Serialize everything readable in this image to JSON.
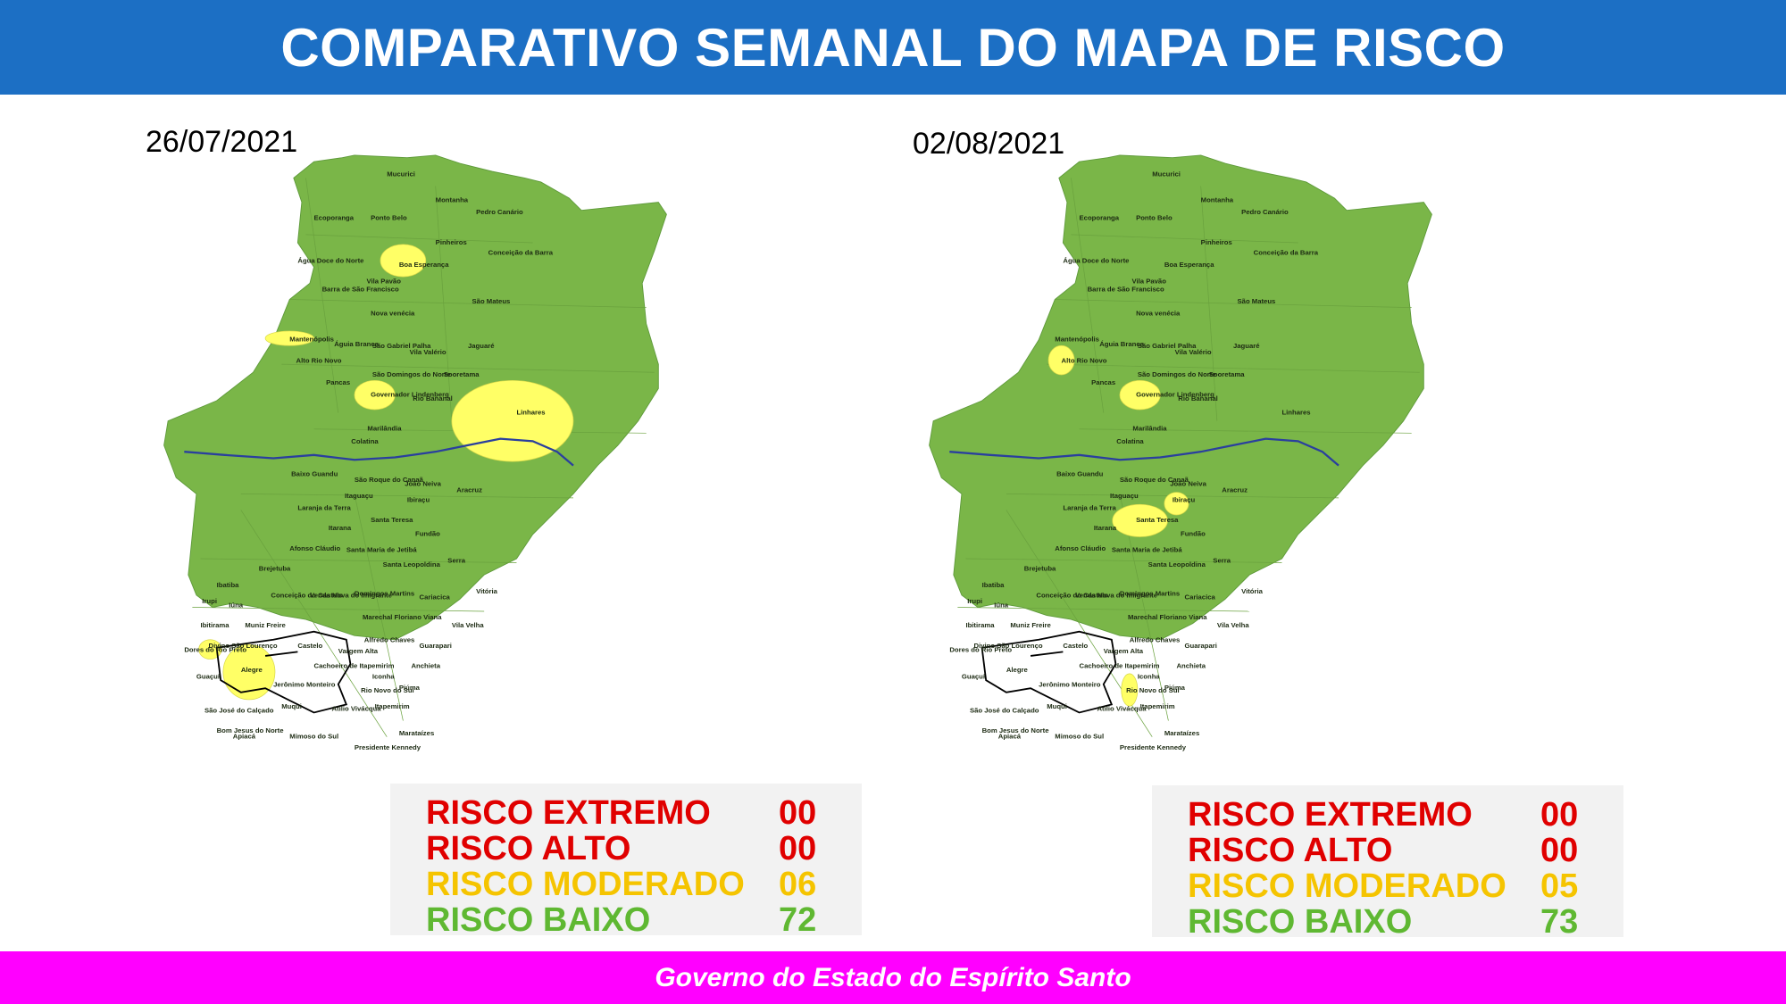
{
  "header": {
    "title": "COMPARATIVO SEMANAL DO MAPA DE RISCO"
  },
  "footer": {
    "text": "Governo do Estado do Espírito Santo"
  },
  "colors": {
    "header_bg": "#1c6fc4",
    "footer_bg": "#ff00ff",
    "risk_low": "#7ab648",
    "risk_moderate": "#ffff66",
    "risk_high": "#e00000",
    "risk_extreme": "#e00000",
    "moderate_text": "#f5c400",
    "river": "#2a3f9e"
  },
  "maps": [
    {
      "date": "26/07/2021",
      "legend": [
        {
          "label": "RISCO EXTREMO",
          "count": "00",
          "color": "#e00000"
        },
        {
          "label": "RISCO ALTO",
          "count": "00",
          "color": "#e00000"
        },
        {
          "label": "RISCO MODERADO",
          "count": "06",
          "color": "#f5c400"
        },
        {
          "label": "RISCO BAIXO",
          "count": "72",
          "color": "#5fb832"
        }
      ],
      "moderate_municipalities": [
        "Boa Esperança",
        "Mantenópolis",
        "Governador Lindenberg",
        "Linhares",
        "Divino São Lourenço",
        "Alegre"
      ],
      "labels": [
        "Mucurici",
        "Montanha",
        "Pedro Canário",
        "Ecoporanga",
        "Ponto Belo",
        "Pinheiros",
        "Conceição da Barra",
        "Boa Esperança",
        "Água Doce do Norte",
        "Barra de São Francisco",
        "Vila Pavão",
        "São Mateus",
        "Nova venécia",
        "Mantenópolis",
        "Águia Branca",
        "São Gabriel Palha",
        "Vila Valério",
        "Jaguaré",
        "Alto Rio Novo",
        "São Domingos do Norte",
        "Sooretama",
        "Pancas",
        "Governador Lindenberg",
        "Rio Bananal",
        "Linhares",
        "Marilândia",
        "Colatina",
        "Baixo Guandu",
        "São Roque do Canaã",
        "João Neiva",
        "Aracruz",
        "Itaguaçu",
        "Ibiraçu",
        "Laranja da Terra",
        "Santa Teresa",
        "Itarana",
        "Fundão",
        "Afonso Cláudio",
        "Santa Maria de Jetibá",
        "Serra",
        "Santa Leopoldina",
        "Brejetuba",
        "Ibatiba",
        "Vitória",
        "Conceição do Castelo",
        "Venda Nova do Imigrante",
        "Domingos Martins",
        "Irupi",
        "Iúna",
        "Cariacica",
        "Viana",
        "Marechal Floriano",
        "Ibitirama",
        "Muniz Freire",
        "Vila Velha",
        "Alfredo Chaves",
        "Divino São Lourenço",
        "Castelo",
        "Vargem Alta",
        "Dores do Rio Preto",
        "Guarapari",
        "Cachoeiro de Itapemirim",
        "Alegre",
        "Anchieta",
        "Guaçuí",
        "Jerônimo Monteiro",
        "Iconha",
        "Rio Novo do Sul",
        "Piúma",
        "Muqui",
        "Atílio Vivácqua",
        "São José do Calçado",
        "Itapemirim",
        "Bom Jesus do Norte",
        "Apiacá",
        "Mimoso do Sul",
        "Marataízes",
        "Presidente Kennedy"
      ]
    },
    {
      "date": "02/08/2021",
      "legend": [
        {
          "label": "RISCO EXTREMO",
          "count": "00",
          "color": "#e00000"
        },
        {
          "label": "RISCO ALTO",
          "count": "00",
          "color": "#e00000"
        },
        {
          "label": "RISCO MODERADO",
          "count": "05",
          "color": "#f5c400"
        },
        {
          "label": "RISCO BAIXO",
          "count": "73",
          "color": "#5fb832"
        }
      ],
      "moderate_municipalities": [
        "Alto Rio Novo",
        "Governador Lindenberg",
        "Santa Teresa",
        "Ibiraçu",
        "Rio Novo do Sul"
      ],
      "labels": [
        "Mucurici",
        "Montanha",
        "Pedro Canário",
        "Ecoporanga",
        "Ponto Belo",
        "Pinheiros",
        "Conceição da Barra",
        "Boa Esperança",
        "Água Doce do Norte",
        "Barra de São Francisco",
        "Vila Pavão",
        "São Mateus",
        "Nova venécia",
        "Mantenópolis",
        "Águia Branca",
        "São Gabriel Palha",
        "Vila Valério",
        "Jaguaré",
        "Alto Rio Novo",
        "São Domingos do Norte",
        "Sooretama",
        "Pancas",
        "Governador Lindenberg",
        "Rio Bananal",
        "Linhares",
        "Marilândia",
        "Colatina",
        "Baixo Guandu",
        "São Roque do Canaã",
        "João Neiva",
        "Aracruz",
        "Itaguaçu",
        "Ibiraçu",
        "Laranja da Terra",
        "Santa Teresa",
        "Itarana",
        "Fundão",
        "Afonso Cláudio",
        "Santa Maria de Jetibá",
        "Serra",
        "Santa Leopoldina",
        "Brejetuba",
        "Ibatiba",
        "Vitória",
        "Conceição do Castelo",
        "Venda Nova do Imigrante",
        "Domingos Martins",
        "Irupi",
        "Iúna",
        "Cariacica",
        "Viana",
        "Marechal Floriano",
        "Ibitirama",
        "Muniz Freire",
        "Vila Velha",
        "Alfredo Chaves",
        "Divino São Lourenço",
        "Castelo",
        "Vargem Alta",
        "Dores do Rio Preto",
        "Guarapari",
        "Cachoeiro de Itapemirim",
        "Alegre",
        "Anchieta",
        "Guaçuí",
        "Jerônimo Monteiro",
        "Iconha",
        "Rio Novo do Sul",
        "Piúma",
        "Muqui",
        "Atílio Vivácqua",
        "São José do Calçado",
        "Itapemirim",
        "Bom Jesus do Norte",
        "Apiacá",
        "Mimoso do Sul",
        "Marataízes",
        "Presidente Kennedy"
      ]
    }
  ]
}
